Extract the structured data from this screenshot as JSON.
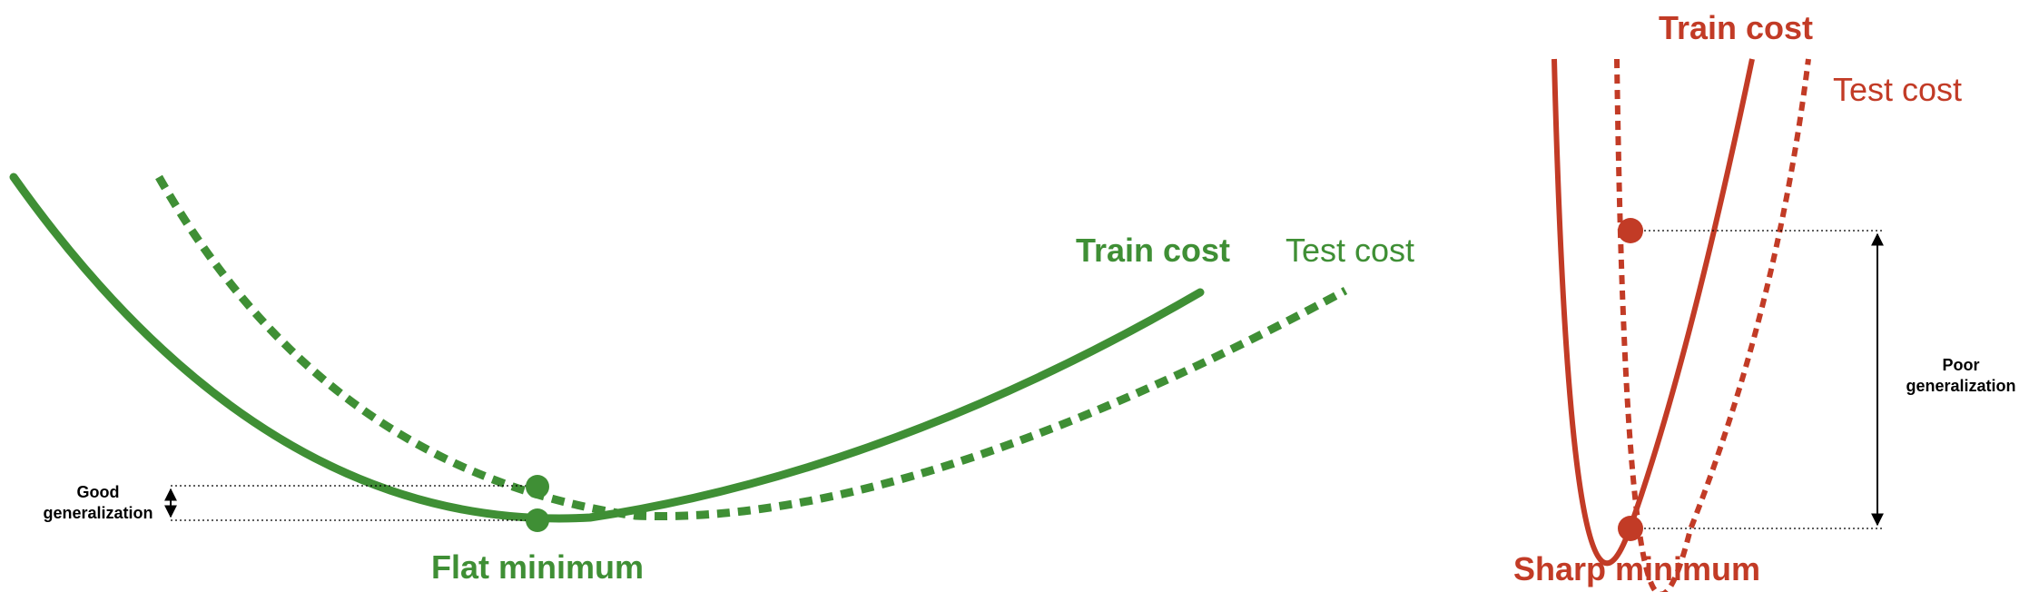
{
  "colors": {
    "flat": "#3f8f35",
    "sharp": "#c23b26",
    "annotation": "#000000"
  },
  "flat": {
    "train_label": "Train cost",
    "test_label": "Test cost",
    "minimum_label": "Flat minimum",
    "note_line1": "Good",
    "note_line2": "generalization"
  },
  "sharp": {
    "train_label": "Train cost",
    "test_label": "Test cost",
    "minimum_label": "Sharp minimum",
    "note_line1": "Poor",
    "note_line2": "generalization"
  }
}
